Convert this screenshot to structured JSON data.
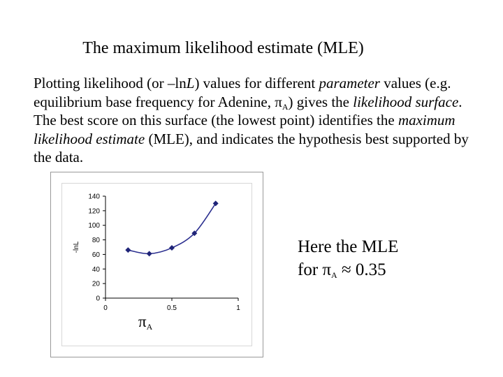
{
  "slide": {
    "title": "The maximum likelihood estimate (MLE)",
    "para": {
      "s1": "Plotting likelihood (or –ln",
      "s2": "L",
      "s3": ") values for different ",
      "s4": "parameter",
      "s5": " values (e.g. equilibrium base frequency for Adenine, π",
      "s6": "A",
      "s7": ") gives the ",
      "s8": "likelihood surface",
      "s9": ". The best score on this surface (the lowest point) identifies the ",
      "s10": "maximum likelihood estimate",
      "s11": " (MLE), and indicates the hypothesis best supported by the data."
    },
    "x_symbol": "π",
    "x_symbol_sub": "A",
    "note": {
      "line1": "Here the MLE",
      "line2_prefix": "for π",
      "line2_sub": "A",
      "line2_suffix": " ≈ 0.35"
    }
  },
  "chart_data": {
    "type": "line",
    "ylabel": "-lnL",
    "xlabel": "",
    "x": [
      0.17,
      0.33,
      0.5,
      0.67,
      0.83
    ],
    "values": [
      66,
      61,
      69,
      89,
      130
    ],
    "xlim": [
      0,
      1
    ],
    "ylim": [
      0,
      140
    ],
    "xticks": [
      "0",
      "0.5",
      "1"
    ],
    "yticks": [
      "0",
      "20",
      "40",
      "60",
      "80",
      "100",
      "120",
      "140"
    ],
    "grid": false,
    "line_color": "#2b2f8f",
    "marker_color": "#1f2478"
  }
}
